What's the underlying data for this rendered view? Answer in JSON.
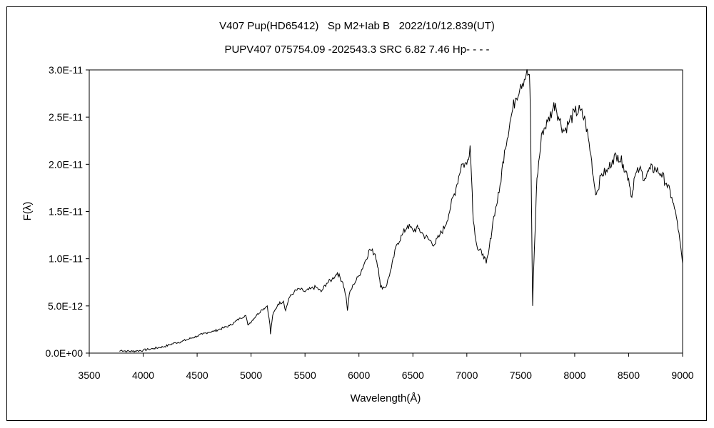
{
  "chart_data": {
    "type": "line",
    "title": "V407 Pup(HD65412)   Sp M2+Iab B   2022/10/12.839(UT)",
    "subtitle": "PUPV407 075754.09 -202543.3 SRC 6.82 7.46 Hp- - - -",
    "xlabel": "Wavelength(Å)",
    "ylabel": "F(λ)",
    "xlim": [
      3500,
      9000
    ],
    "ylim": [
      0,
      3e-11
    ],
    "xticks": [
      "3500",
      "4000",
      "4500",
      "5000",
      "5500",
      "6000",
      "6500",
      "7000",
      "7500",
      "8000",
      "8500",
      "9000"
    ],
    "yticks": [
      "0.0E+00",
      "5.0E-12",
      "1.0E-11",
      "1.5E-11",
      "2.0E-11",
      "2.5E-11",
      "3.0E-11"
    ],
    "grid": false,
    "legend": "none",
    "color": "#000000",
    "series": [
      {
        "x": [
          3780,
          3800,
          3850,
          3900,
          3950,
          4000,
          4050,
          4100,
          4150,
          4200,
          4250,
          4300,
          4350,
          4400,
          4450,
          4500,
          4550,
          4600,
          4650,
          4700,
          4750,
          4800,
          4850,
          4900,
          4950,
          4970,
          4990,
          5050,
          5100,
          5150,
          5175,
          5180,
          5200,
          5250,
          5300,
          5320,
          5350,
          5400,
          5450,
          5500,
          5550,
          5600,
          5650,
          5700,
          5750,
          5800,
          5850,
          5880,
          5893,
          5910,
          5950,
          6000,
          6050,
          6100,
          6150,
          6180,
          6200,
          6250,
          6300,
          6350,
          6400,
          6450,
          6500,
          6550,
          6600,
          6650,
          6700,
          6750,
          6800,
          6850,
          6900,
          6950,
          7000,
          7030,
          7050,
          7060,
          7100,
          7150,
          7180,
          7200,
          7250,
          7300,
          7350,
          7400,
          7450,
          7500,
          7550,
          7580,
          7590,
          7600,
          7610,
          7620,
          7650,
          7700,
          7750,
          7800,
          7820,
          7850,
          7900,
          7950,
          8000,
          8050,
          8100,
          8150,
          8180,
          8200,
          8250,
          8300,
          8350,
          8400,
          8450,
          8500,
          8530,
          8550,
          8600,
          8650,
          8700,
          8750,
          8800,
          8850,
          8900,
          8950,
          9000
        ],
        "y": [
          2e-13,
          3e-13,
          2e-13,
          2e-13,
          2.5e-13,
          3e-13,
          4e-13,
          5e-13,
          6e-13,
          7e-13,
          9e-13,
          1.1e-12,
          1.2e-12,
          1.4e-12,
          1.6e-12,
          1.8e-12,
          2e-12,
          2.2e-12,
          2.3e-12,
          2.5e-12,
          2.7e-12,
          2.9e-12,
          3.3e-12,
          3.7e-12,
          4e-12,
          3e-12,
          3.2e-12,
          4e-12,
          4.6e-12,
          5e-12,
          3e-12,
          2e-12,
          4e-12,
          5.2e-12,
          5.5e-12,
          4.5e-12,
          5.8e-12,
          6.5e-12,
          6.8e-12,
          6.5e-12,
          6.8e-12,
          7e-12,
          6.5e-12,
          7.4e-12,
          7.8e-12,
          8.5e-12,
          7.5e-12,
          6e-12,
          4.5e-12,
          6.2e-12,
          7.3e-12,
          8.2e-12,
          9.5e-12,
          1.1e-11,
          1.05e-11,
          9e-12,
          7e-12,
          7e-12,
          9e-12,
          1.15e-11,
          1.25e-11,
          1.35e-11,
          1.3e-11,
          1.32e-11,
          1.25e-11,
          1.2e-11,
          1.15e-11,
          1.25e-11,
          1.35e-11,
          1.55e-11,
          1.75e-11,
          2e-11,
          2e-11,
          2.2e-11,
          1.7e-11,
          1.4e-11,
          1.1e-11,
          1.05e-11,
          9.5e-12,
          1.05e-11,
          1.45e-11,
          1.7e-11,
          2.15e-11,
          2.45e-11,
          2.7e-11,
          2.85e-11,
          2.95e-11,
          2.95e-11,
          2.5e-11,
          1.5e-11,
          5e-12,
          9e-12,
          1.85e-11,
          2.35e-11,
          2.45e-11,
          2.6e-11,
          2.65e-11,
          2.5e-11,
          2.35e-11,
          2.45e-11,
          2.55e-11,
          2.57e-11,
          2.45e-11,
          2.1e-11,
          1.8e-11,
          1.68e-11,
          1.9e-11,
          1.92e-11,
          2.05e-11,
          2.1e-11,
          2e-11,
          1.85e-11,
          1.65e-11,
          1.85e-11,
          1.95e-11,
          1.85e-11,
          1.95e-11,
          1.95e-11,
          1.9e-11,
          1.8e-11,
          1.65e-11,
          1.4e-11,
          9.5e-12
        ]
      }
    ]
  }
}
